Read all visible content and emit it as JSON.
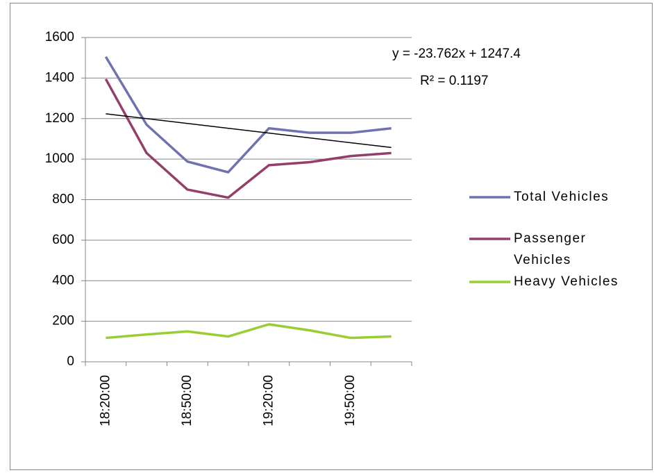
{
  "chart_data": {
    "type": "line",
    "categories": [
      "18:20:00",
      null,
      "18:50:00",
      null,
      "19:20:00",
      null,
      "19:50:00",
      null
    ],
    "series": [
      {
        "name": "Total Vehicles",
        "color": "#6f72ae",
        "values": [
          1505,
          1170,
          988,
          935,
          1152,
          1130,
          1130,
          1152
        ]
      },
      {
        "name": "Passenger Vehicles",
        "color": "#943f6a",
        "values": [
          1395,
          1030,
          850,
          810,
          970,
          985,
          1015,
          1030
        ]
      },
      {
        "name": "Heavy Vehicles",
        "color": "#9acd32",
        "values": [
          118,
          135,
          150,
          125,
          185,
          155,
          118,
          125
        ]
      }
    ],
    "trendline": {
      "equation": "y = -23.762x + 1247.4",
      "slope": -23.762,
      "intercept": 1247.4,
      "r_squared_label": "R² = 0.1197",
      "color": "#000000"
    },
    "ylim": [
      0,
      1600
    ],
    "yticks": [
      0,
      200,
      400,
      600,
      800,
      1000,
      1200,
      1400,
      1600
    ],
    "grid": true,
    "legend": "right"
  }
}
